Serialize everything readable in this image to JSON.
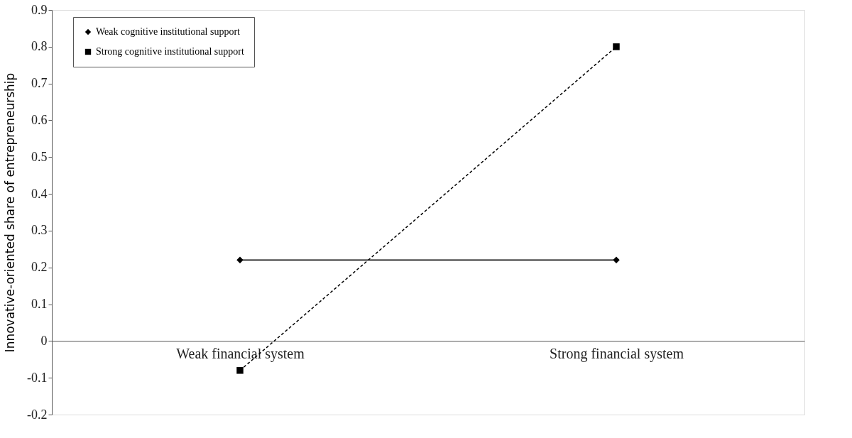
{
  "chart_data": {
    "type": "line",
    "ylabel": "Innovative-oriented share of entrepreneurship",
    "categories": [
      "Weak financial system",
      "Strong financial system"
    ],
    "series": [
      {
        "name": "Weak cognitive institutional support",
        "color": "#000000",
        "values": [
          0.22,
          0.22
        ],
        "marker": "diamond",
        "line_style": "solid"
      },
      {
        "name": "Strong cognitive institutional support",
        "color": "#000000",
        "values": [
          -0.08,
          0.8
        ],
        "marker": "square",
        "line_style": "dashed"
      }
    ],
    "ylim": [
      -0.2,
      0.9
    ],
    "yticks": [
      -0.2,
      -0.1,
      0,
      0.1,
      0.2,
      0.3,
      0.4,
      0.5,
      0.6,
      0.7,
      0.8,
      0.9
    ],
    "grid": false,
    "legend": "top left"
  }
}
